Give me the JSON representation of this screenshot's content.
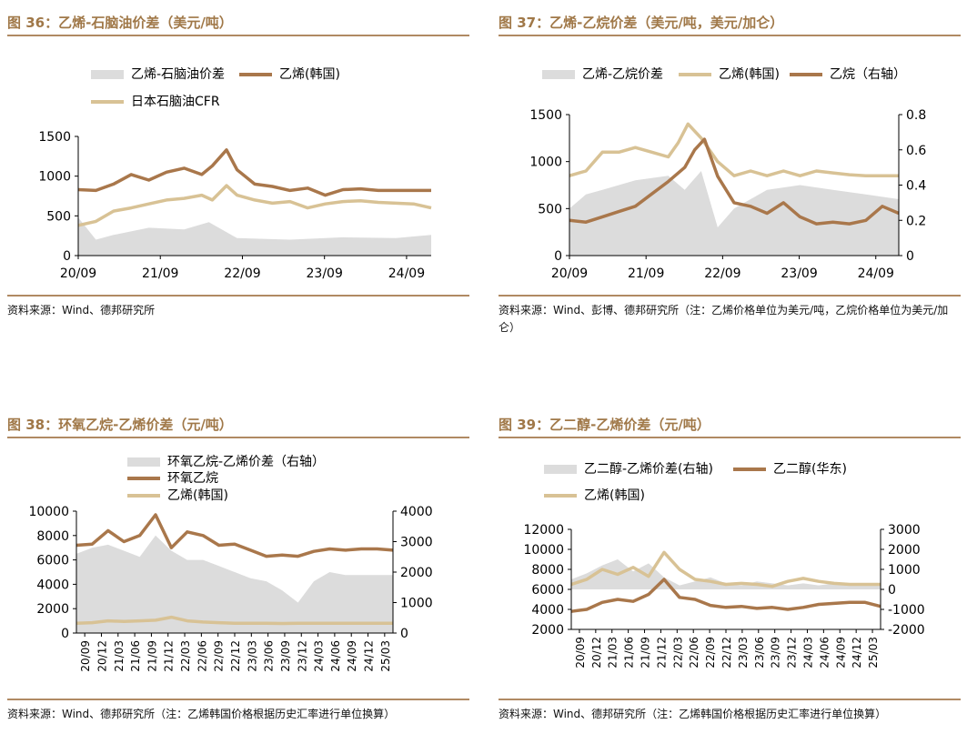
{
  "colors": {
    "spread": "#dcdcdc",
    "brown": "#a9774b",
    "beige": "#d8c295",
    "title": "#a07848",
    "rule": "#b08a63"
  },
  "chart_data": [
    {
      "id": "c36",
      "title": "图 36：乙烯-石脑油价差（美元/吨）",
      "source": "资料来源：Wind、德邦研究所",
      "type": "line",
      "x_ticks": [
        "20/09",
        "21/09",
        "22/09",
        "23/09",
        "24/09"
      ],
      "y_left": {
        "min": 0,
        "max": 1500,
        "ticks": [
          0,
          500,
          1000,
          1500
        ]
      },
      "legend": [
        "乙烯-石脑油价差",
        "乙烯(韩国)",
        "日本石脑油CFR"
      ],
      "series": [
        {
          "name": "乙烯-石脑油价差",
          "kind": "area",
          "axis": "left",
          "color": "#dcdcdc",
          "x": [
            0,
            0.05,
            0.1,
            0.2,
            0.3,
            0.37,
            0.45,
            0.6,
            0.75,
            0.9,
            1.0
          ],
          "y": [
            480,
            200,
            260,
            350,
            330,
            420,
            220,
            200,
            230,
            220,
            260
          ]
        },
        {
          "name": "乙烯(韩国)",
          "kind": "line",
          "axis": "left",
          "color": "#a9774b",
          "x": [
            0,
            0.05,
            0.1,
            0.15,
            0.2,
            0.25,
            0.3,
            0.35,
            0.38,
            0.42,
            0.45,
            0.5,
            0.55,
            0.6,
            0.65,
            0.7,
            0.75,
            0.8,
            0.85,
            0.9,
            0.95,
            1.0
          ],
          "y": [
            830,
            820,
            900,
            1020,
            950,
            1050,
            1100,
            1020,
            1130,
            1330,
            1080,
            900,
            870,
            820,
            850,
            760,
            830,
            840,
            820,
            820,
            820,
            820
          ]
        },
        {
          "name": "日本石脑油CFR",
          "kind": "line",
          "axis": "left",
          "color": "#d8c295",
          "x": [
            0,
            0.05,
            0.1,
            0.15,
            0.2,
            0.25,
            0.3,
            0.35,
            0.38,
            0.42,
            0.45,
            0.5,
            0.55,
            0.6,
            0.65,
            0.7,
            0.75,
            0.8,
            0.85,
            0.9,
            0.95,
            1.0
          ],
          "y": [
            380,
            430,
            560,
            600,
            650,
            700,
            720,
            760,
            700,
            880,
            760,
            700,
            660,
            680,
            600,
            650,
            680,
            690,
            670,
            660,
            650,
            600
          ]
        }
      ]
    },
    {
      "id": "c37",
      "title": "图 37：乙烯-乙烷价差（美元/吨，美元/加仑）",
      "source": "资料来源：Wind、彭博、德邦研究所（注：乙烯价格单位为美元/吨，乙烷价格单位为美元/加仑）",
      "type": "line",
      "x_ticks": [
        "20/09",
        "21/09",
        "22/09",
        "23/09",
        "24/09"
      ],
      "y_left": {
        "min": 0,
        "max": 1500,
        "ticks": [
          0,
          500,
          1000,
          1500
        ]
      },
      "y_right": {
        "min": 0,
        "max": 0.8,
        "ticks": [
          "0",
          "0.2",
          "0.4",
          "0.6",
          "0.8"
        ]
      },
      "legend": [
        "乙烯-乙烷价差",
        "乙烯(韩国)",
        "乙烷（右轴）"
      ],
      "series": [
        {
          "name": "乙烯-乙烷价差",
          "kind": "area",
          "axis": "left",
          "color": "#dcdcdc",
          "x": [
            0,
            0.05,
            0.1,
            0.2,
            0.3,
            0.35,
            0.4,
            0.45,
            0.5,
            0.6,
            0.7,
            0.8,
            0.9,
            1.0
          ],
          "y": [
            500,
            650,
            700,
            800,
            850,
            700,
            900,
            300,
            500,
            700,
            750,
            700,
            650,
            600
          ]
        },
        {
          "name": "乙烯(韩国)",
          "kind": "line",
          "axis": "left",
          "color": "#d8c295",
          "x": [
            0,
            0.05,
            0.1,
            0.15,
            0.2,
            0.25,
            0.3,
            0.33,
            0.36,
            0.4,
            0.45,
            0.5,
            0.55,
            0.6,
            0.65,
            0.7,
            0.75,
            0.8,
            0.85,
            0.9,
            1.0
          ],
          "y": [
            850,
            900,
            1100,
            1100,
            1150,
            1100,
            1050,
            1200,
            1400,
            1250,
            1000,
            850,
            900,
            850,
            900,
            850,
            900,
            880,
            860,
            850,
            850
          ]
        },
        {
          "name": "乙烷（右轴）",
          "kind": "line",
          "axis": "right",
          "color": "#a9774b",
          "x": [
            0,
            0.05,
            0.1,
            0.15,
            0.2,
            0.25,
            0.3,
            0.35,
            0.38,
            0.41,
            0.45,
            0.5,
            0.55,
            0.6,
            0.65,
            0.7,
            0.75,
            0.8,
            0.85,
            0.9,
            0.95,
            1.0
          ],
          "y": [
            0.2,
            0.19,
            0.22,
            0.25,
            0.28,
            0.35,
            0.42,
            0.5,
            0.6,
            0.66,
            0.45,
            0.3,
            0.28,
            0.24,
            0.3,
            0.22,
            0.18,
            0.19,
            0.18,
            0.2,
            0.28,
            0.24
          ]
        }
      ]
    },
    {
      "id": "c38",
      "title": "图 38：环氧乙烷-乙烯价差（元/吨）",
      "source": "资料来源：Wind、德邦研究所（注：乙烯韩国价格根据历史汇率进行单位换算）",
      "type": "line",
      "x_ticks": [
        "20/09",
        "20/12",
        "21/03",
        "21/06",
        "21/09",
        "21/12",
        "22/03",
        "22/06",
        "22/09",
        "22/12",
        "23/03",
        "23/06",
        "23/09",
        "23/12",
        "24/03",
        "24/06",
        "24/09",
        "24/12",
        "25/03"
      ],
      "x_ticks_rotated": true,
      "y_left": {
        "min": 0,
        "max": 10000,
        "ticks": [
          0,
          2000,
          4000,
          6000,
          8000,
          10000
        ]
      },
      "y_right": {
        "min": 0,
        "max": 4000,
        "ticks": [
          "0",
          "1000",
          "2000",
          "3000",
          "4000"
        ]
      },
      "legend": [
        "环氧乙烷-乙烯价差（右轴）",
        "环氧乙烷",
        "乙烯(韩国)"
      ],
      "series": [
        {
          "name": "环氧乙烷-乙烯价差（右轴）",
          "kind": "area",
          "axis": "right",
          "color": "#dcdcdc",
          "x": [
            0,
            0.05,
            0.1,
            0.15,
            0.2,
            0.25,
            0.3,
            0.35,
            0.4,
            0.45,
            0.5,
            0.55,
            0.6,
            0.65,
            0.7,
            0.75,
            0.8,
            0.85,
            0.9,
            0.95,
            1.0
          ],
          "y": [
            2600,
            2800,
            2900,
            2700,
            2500,
            3200,
            2700,
            2400,
            2400,
            2200,
            2000,
            1800,
            1700,
            1400,
            1000,
            1700,
            2000,
            1900,
            1900,
            1900,
            1900
          ]
        },
        {
          "name": "环氧乙烷",
          "kind": "line",
          "axis": "left",
          "color": "#a9774b",
          "x": [
            0,
            0.05,
            0.1,
            0.15,
            0.2,
            0.25,
            0.3,
            0.35,
            0.4,
            0.45,
            0.5,
            0.55,
            0.6,
            0.65,
            0.7,
            0.75,
            0.8,
            0.85,
            0.9,
            0.95,
            1.0
          ],
          "y": [
            7200,
            7300,
            8400,
            7500,
            8000,
            9700,
            7000,
            8300,
            8000,
            7200,
            7300,
            6800,
            6300,
            6400,
            6300,
            6700,
            6900,
            6800,
            6900,
            6900,
            6800
          ]
        },
        {
          "name": "乙烯(韩国)",
          "kind": "line",
          "axis": "left",
          "color": "#d8c295",
          "x": [
            0,
            0.05,
            0.1,
            0.15,
            0.2,
            0.25,
            0.3,
            0.35,
            0.4,
            0.45,
            0.5,
            0.55,
            0.6,
            0.65,
            0.7,
            0.75,
            0.8,
            0.85,
            0.9,
            0.95,
            1.0
          ],
          "y": [
            800,
            850,
            1000,
            950,
            1000,
            1050,
            1300,
            1000,
            900,
            850,
            800,
            800,
            800,
            780,
            800,
            800,
            800,
            800,
            800,
            800,
            800
          ]
        }
      ]
    },
    {
      "id": "c39",
      "title": "图 39：乙二醇-乙烯价差（元/吨）",
      "source": "资料来源：Wind、德邦研究所（注：乙烯韩国价格根据历史汇率进行单位换算）",
      "type": "line",
      "x_ticks": [
        "20/09",
        "20/12",
        "21/03",
        "21/06",
        "21/09",
        "21/12",
        "22/03",
        "22/06",
        "22/09",
        "22/12",
        "23/03",
        "23/06",
        "23/09",
        "23/12",
        "24/03",
        "24/06",
        "24/09",
        "24/12",
        "25/03"
      ],
      "x_ticks_rotated": true,
      "y_left": {
        "min": 2000,
        "max": 12000,
        "ticks": [
          2000,
          4000,
          6000,
          8000,
          10000,
          12000
        ]
      },
      "y_right": {
        "min": -2000,
        "max": 3000,
        "ticks": [
          "-2000",
          "-1000",
          "0",
          "1000",
          "2000",
          "3000"
        ]
      },
      "legend": [
        "乙二醇-乙烯价差(右轴)",
        "乙二醇(华东)",
        "乙烯(韩国)"
      ],
      "series": [
        {
          "name": "乙二醇-乙烯价差(右轴)",
          "kind": "band",
          "axis": "right",
          "color": "#dcdcdc",
          "x": [
            0,
            0.05,
            0.1,
            0.15,
            0.2,
            0.25,
            0.3,
            0.35,
            0.4,
            0.45,
            0.5,
            0.55,
            0.6,
            0.65,
            0.7,
            0.75,
            0.8,
            0.85,
            0.9,
            0.95,
            1.0
          ],
          "y": [
            500,
            800,
            1200,
            1500,
            900,
            1300,
            600,
            200,
            400,
            600,
            300,
            200,
            400,
            300,
            200,
            300,
            200,
            300,
            300,
            200,
            200
          ]
        },
        {
          "name": "乙二醇(华东)",
          "kind": "line",
          "axis": "left",
          "color": "#a9774b",
          "x": [
            0,
            0.05,
            0.1,
            0.15,
            0.2,
            0.25,
            0.3,
            0.35,
            0.4,
            0.45,
            0.5,
            0.55,
            0.6,
            0.65,
            0.7,
            0.75,
            0.8,
            0.85,
            0.9,
            0.95,
            1.0
          ],
          "y": [
            3800,
            4000,
            4700,
            5000,
            4800,
            5500,
            7000,
            5200,
            5000,
            4400,
            4200,
            4300,
            4100,
            4200,
            4000,
            4200,
            4500,
            4600,
            4700,
            4700,
            4300
          ]
        },
        {
          "name": "乙烯(韩国)",
          "kind": "line",
          "axis": "left",
          "color": "#d8c295",
          "x": [
            0,
            0.05,
            0.1,
            0.15,
            0.2,
            0.25,
            0.3,
            0.35,
            0.4,
            0.45,
            0.5,
            0.55,
            0.6,
            0.65,
            0.7,
            0.75,
            0.8,
            0.85,
            0.9,
            0.95,
            1.0
          ],
          "y": [
            6500,
            7000,
            8000,
            7500,
            8200,
            7300,
            9700,
            8000,
            7000,
            6800,
            6500,
            6600,
            6500,
            6300,
            6800,
            7100,
            6800,
            6600,
            6500,
            6500,
            6500
          ]
        }
      ]
    }
  ]
}
